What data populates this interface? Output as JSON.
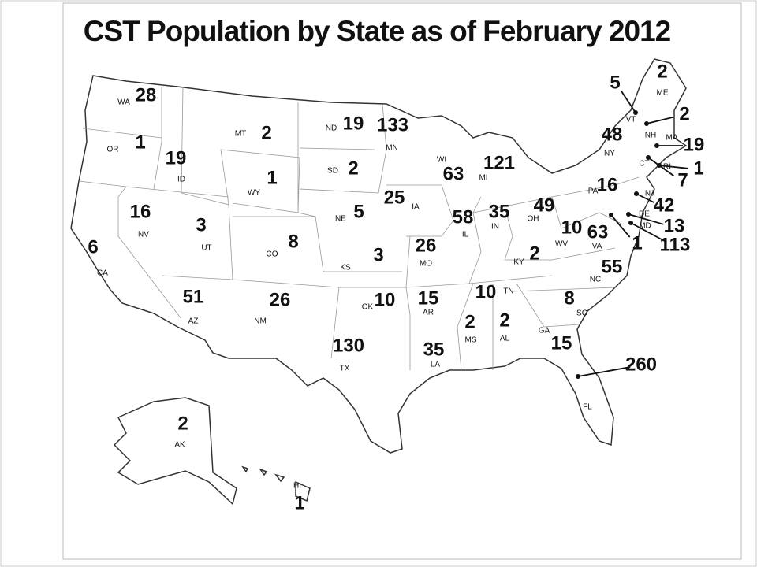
{
  "title": "CST Population by State as of February 2012",
  "states": [
    {
      "abbr": "WA",
      "value": 28
    },
    {
      "abbr": "OR",
      "value": 1
    },
    {
      "abbr": "ID",
      "value": 19
    },
    {
      "abbr": "MT",
      "value": 2
    },
    {
      "abbr": "WY",
      "value": 1
    },
    {
      "abbr": "ND",
      "value": 19
    },
    {
      "abbr": "SD",
      "value": 2
    },
    {
      "abbr": "MN",
      "value": 133
    },
    {
      "abbr": "WI",
      "value": 63
    },
    {
      "abbr": "MI",
      "value": 121
    },
    {
      "abbr": "NE",
      "value": 5
    },
    {
      "abbr": "IA",
      "value": 25
    },
    {
      "abbr": "IL",
      "value": 58
    },
    {
      "abbr": "IN",
      "value": 35
    },
    {
      "abbr": "OH",
      "value": 49
    },
    {
      "abbr": "KY",
      "value": 2
    },
    {
      "abbr": "NV",
      "value": 16
    },
    {
      "abbr": "UT",
      "value": 3
    },
    {
      "abbr": "CO",
      "value": 8
    },
    {
      "abbr": "CA",
      "value": 6
    },
    {
      "abbr": "KS",
      "value": 3
    },
    {
      "abbr": "MO",
      "value": 26
    },
    {
      "abbr": "AZ",
      "value": 51
    },
    {
      "abbr": "NM",
      "value": 26
    },
    {
      "abbr": "OK",
      "value": 10
    },
    {
      "abbr": "AR",
      "value": 15
    },
    {
      "abbr": "TN",
      "value": 10
    },
    {
      "abbr": "MS",
      "value": 2
    },
    {
      "abbr": "AL",
      "value": 2
    },
    {
      "abbr": "LA",
      "value": 35
    },
    {
      "abbr": "TX",
      "value": 130
    },
    {
      "abbr": "GA",
      "value": 15
    },
    {
      "abbr": "SC",
      "value": 8
    },
    {
      "abbr": "NC",
      "value": 55
    },
    {
      "abbr": "VA",
      "value": 63
    },
    {
      "abbr": "WV",
      "value": 10
    },
    {
      "abbr": "PA",
      "value": 16
    },
    {
      "abbr": "NY",
      "value": 48
    },
    {
      "abbr": "FL",
      "value": 260
    },
    {
      "abbr": "AK",
      "value": 2
    },
    {
      "abbr": "HI",
      "value": 1
    },
    {
      "abbr": "VT",
      "value": 5
    },
    {
      "abbr": "NH",
      "value": 2
    },
    {
      "abbr": "ME",
      "value": 2
    },
    {
      "abbr": "MA",
      "value": 19
    },
    {
      "abbr": "CT",
      "value": 7
    },
    {
      "abbr": "RI",
      "value": 1
    },
    {
      "abbr": "NJ",
      "value": 42
    },
    {
      "abbr": "DE",
      "value": 13
    },
    {
      "abbr": "MD",
      "value": 113
    },
    {
      "value": 1
    }
  ]
}
